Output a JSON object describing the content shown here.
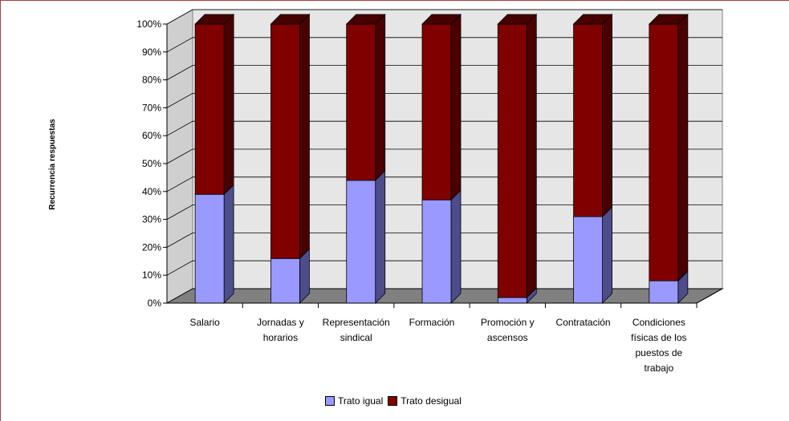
{
  "chart_data": {
    "type": "bar",
    "stacked": "percent",
    "three_d": true,
    "ylabel": "Recurrencia respuestas",
    "xlabel": "",
    "ylim": [
      0,
      100
    ],
    "yticks": [
      "0%",
      "10%",
      "20%",
      "30%",
      "40%",
      "50%",
      "60%",
      "70%",
      "80%",
      "90%",
      "100%"
    ],
    "categories": [
      [
        "Salario"
      ],
      [
        "Jornadas y",
        "horarios"
      ],
      [
        "Representación",
        "sindical"
      ],
      [
        "Formación"
      ],
      [
        "Promoción y",
        "ascensos"
      ],
      [
        "Contratación"
      ],
      [
        "Condiciones",
        "físicas de los",
        "puestos de",
        "trabajo"
      ]
    ],
    "series": [
      {
        "name": "Trato igual",
        "values": [
          39,
          16,
          44,
          37,
          2,
          31,
          8
        ],
        "color": "#9999ff",
        "side_color": "#4d4d8c"
      },
      {
        "name": "Trato desigual",
        "values": [
          61,
          84,
          56,
          63,
          98,
          69,
          92
        ],
        "color": "#800000",
        "side_color": "#4a0000"
      }
    ],
    "grid": true,
    "legend_position": "bottom",
    "colors": {
      "floor": "#808080",
      "wall": "#e6e6e6",
      "frame_border": "#b33a3a"
    }
  }
}
